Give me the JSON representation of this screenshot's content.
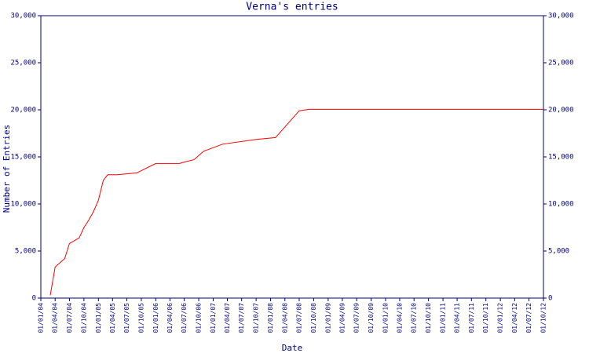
{
  "chart_data": {
    "type": "line",
    "title": "Verna's entries",
    "x_label": "Date",
    "y_label": "Number of Entries",
    "x": [
      "01/03/04",
      "01/04/04",
      "01/06/04",
      "01/07/04",
      "01/09/04",
      "01/10/04",
      "01/11/04",
      "01/12/04",
      "01/01/05",
      "01/02/05",
      "01/03/05",
      "01/05/05",
      "01/09/05",
      "01/01/06",
      "01/06/06",
      "01/07/06",
      "01/09/06",
      "01/11/06",
      "01/03/07",
      "01/10/07",
      "01/02/08",
      "01/07/08",
      "01/09/08",
      "01/10/12"
    ],
    "series": [
      {
        "name": "Entries",
        "color": "#ff0000",
        "values": [
          300,
          3300,
          4200,
          5800,
          6400,
          7500,
          8300,
          9200,
          10400,
          12500,
          13100,
          13100,
          13300,
          14300,
          14300,
          14450,
          14700,
          15600,
          16350,
          16850,
          17050,
          19900,
          20050,
          20050
        ]
      }
    ],
    "xlim": [
      "01/01/04",
      "01/10/12"
    ],
    "xticks": [
      "01/01/04",
      "01/04/04",
      "01/07/04",
      "01/10/04",
      "01/01/05",
      "01/04/05",
      "01/07/05",
      "01/10/05",
      "01/01/06",
      "01/04/06",
      "01/07/06",
      "01/10/06",
      "01/01/07",
      "01/04/07",
      "01/07/07",
      "01/10/07",
      "01/01/08",
      "01/04/08",
      "01/07/08",
      "01/10/08",
      "01/01/09",
      "01/04/09",
      "01/07/09",
      "01/10/09",
      "01/01/10",
      "01/04/10",
      "01/07/10",
      "01/10/10",
      "01/01/11",
      "01/04/11",
      "01/07/11",
      "01/10/11",
      "01/01/12",
      "01/04/12",
      "01/07/12",
      "01/10/12"
    ],
    "ylim": [
      0,
      30000
    ],
    "yticks": [
      0,
      {
        "value": 5000,
        "label": "5,000"
      },
      {
        "value": 10000,
        "label": "10,000"
      },
      {
        "value": 15000,
        "label": "15,000"
      },
      {
        "value": 20000,
        "label": "20,000"
      },
      {
        "value": 25000,
        "label": "25,000"
      },
      {
        "value": 30000,
        "label": "30,000"
      }
    ],
    "right_axis": true
  }
}
